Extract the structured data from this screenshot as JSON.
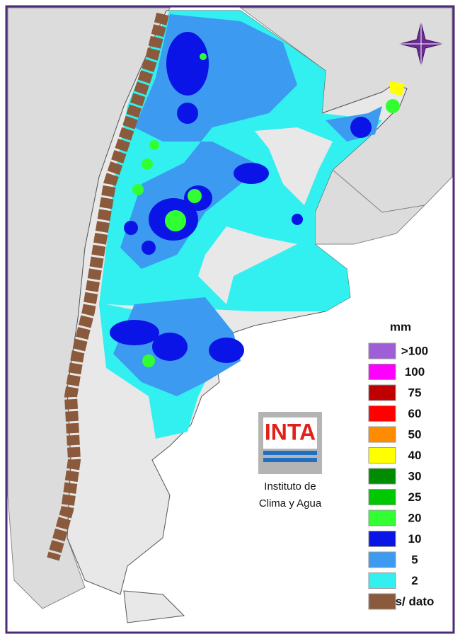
{
  "legend": {
    "title": "mm",
    "items": [
      {
        "label": ">100",
        "color": "#9e5fd6"
      },
      {
        "label": "100",
        "color": "#ff00ff"
      },
      {
        "label": "75",
        "color": "#c00000"
      },
      {
        "label": "60",
        "color": "#ff0000"
      },
      {
        "label": "50",
        "color": "#ff8c00"
      },
      {
        "label": "40",
        "color": "#ffff00"
      },
      {
        "label": "30",
        "color": "#008c00"
      },
      {
        "label": "25",
        "color": "#00c800"
      },
      {
        "label": "20",
        "color": "#32ff32"
      },
      {
        "label": "10",
        "color": "#0a14e6"
      },
      {
        "label": "5",
        "color": "#3c9bf0"
      },
      {
        "label": "2",
        "color": "#32f0f0"
      },
      {
        "label": "s/ dato",
        "color": "#8b5a3c"
      }
    ]
  },
  "logo": {
    "acronym": "INTA",
    "line1": "Instituto de",
    "line2": "Clima y Agua"
  }
}
